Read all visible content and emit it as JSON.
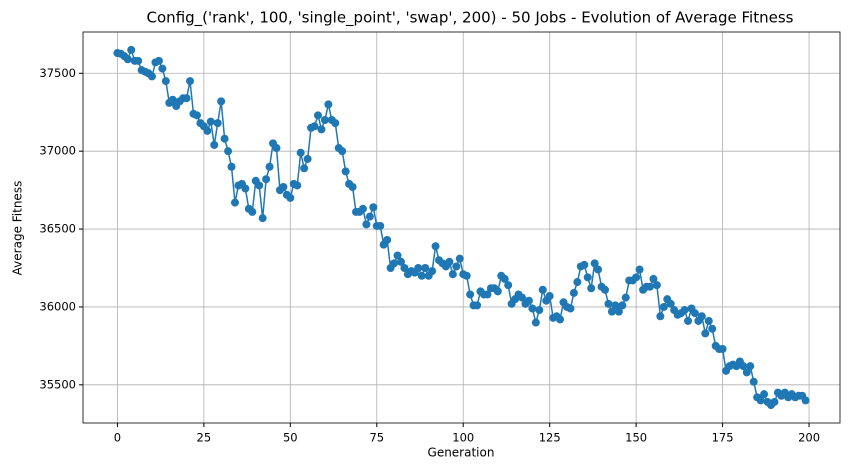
{
  "chart_data": {
    "type": "line",
    "title": "Config_('rank', 100, 'single_point', 'swap', 200) - 50 Jobs - Evolution of Average Fitness",
    "x_label": "Generation",
    "y_label": "Average Fitness",
    "x": [
      0,
      1,
      2,
      3,
      4,
      5,
      6,
      7,
      8,
      9,
      10,
      11,
      12,
      13,
      14,
      15,
      16,
      17,
      18,
      19,
      20,
      21,
      22,
      23,
      24,
      25,
      26,
      27,
      28,
      29,
      30,
      31,
      32,
      33,
      34,
      35,
      36,
      37,
      38,
      39,
      40,
      41,
      42,
      43,
      44,
      45,
      46,
      47,
      48,
      49,
      50,
      51,
      52,
      53,
      54,
      55,
      56,
      57,
      58,
      59,
      60,
      61,
      62,
      63,
      64,
      65,
      66,
      67,
      68,
      69,
      70,
      71,
      72,
      73,
      74,
      75,
      76,
      77,
      78,
      79,
      80,
      81,
      82,
      83,
      84,
      85,
      86,
      87,
      88,
      89,
      90,
      91,
      92,
      93,
      94,
      95,
      96,
      97,
      98,
      99,
      100,
      101,
      102,
      103,
      104,
      105,
      106,
      107,
      108,
      109,
      110,
      111,
      112,
      113,
      114,
      115,
      116,
      117,
      118,
      119,
      120,
      121,
      122,
      123,
      124,
      125,
      126,
      127,
      128,
      129,
      130,
      131,
      132,
      133,
      134,
      135,
      136,
      137,
      138,
      139,
      140,
      141,
      142,
      143,
      144,
      145,
      146,
      147,
      148,
      149,
      150,
      151,
      152,
      153,
      154,
      155,
      156,
      157,
      158,
      159,
      160,
      161,
      162,
      163,
      164,
      165,
      166,
      167,
      168,
      169,
      170,
      171,
      172,
      173,
      174,
      175,
      176,
      177,
      178,
      179,
      180,
      181,
      182,
      183,
      184,
      185,
      186,
      187,
      188,
      189,
      190,
      191,
      192,
      193,
      194,
      195,
      196,
      197,
      198,
      199
    ],
    "series": [
      {
        "name": "Average Fitness",
        "color": "#1f77b4",
        "values": [
          37630,
          37625,
          37610,
          37590,
          37650,
          37580,
          37580,
          37520,
          37510,
          37500,
          37480,
          37570,
          37580,
          37530,
          37450,
          37310,
          37330,
          37290,
          37320,
          37340,
          37340,
          37450,
          37240,
          37230,
          37180,
          37160,
          37130,
          37190,
          37040,
          37180,
          37320,
          37080,
          37000,
          36900,
          36670,
          36780,
          36790,
          36760,
          36630,
          36610,
          36810,
          36780,
          36570,
          36820,
          36900,
          37050,
          37020,
          36750,
          36770,
          36720,
          36700,
          36790,
          36780,
          36990,
          36890,
          36950,
          37150,
          37160,
          37230,
          37140,
          37200,
          37300,
          37200,
          37180,
          37020,
          37000,
          36870,
          36790,
          36770,
          36610,
          36610,
          36630,
          36530,
          36580,
          36640,
          36520,
          36520,
          36400,
          36430,
          36250,
          36280,
          36330,
          36290,
          36250,
          36210,
          36230,
          36220,
          36250,
          36200,
          36250,
          36200,
          36230,
          36390,
          36300,
          36280,
          36260,
          36290,
          36210,
          36260,
          36310,
          36210,
          36200,
          36080,
          36010,
          36010,
          36100,
          36080,
          36080,
          36120,
          36120,
          36100,
          36200,
          36180,
          36140,
          36020,
          36050,
          36080,
          36060,
          36020,
          36040,
          35990,
          35900,
          35980,
          36110,
          36040,
          36070,
          35930,
          35940,
          35920,
          36030,
          36000,
          35990,
          36090,
          36160,
          36260,
          36270,
          36190,
          36120,
          36280,
          36240,
          36130,
          36110,
          36020,
          35970,
          36010,
          35970,
          36010,
          36060,
          36170,
          36170,
          36190,
          36240,
          36110,
          36130,
          36130,
          36180,
          36140,
          35940,
          36000,
          36050,
          36020,
          35980,
          35950,
          35960,
          35980,
          35910,
          35990,
          35960,
          35910,
          35940,
          35830,
          35910,
          35860,
          35750,
          35730,
          35730,
          35590,
          35620,
          35630,
          35620,
          35650,
          35620,
          35580,
          35620,
          35520,
          35420,
          35400,
          35440,
          35390,
          35370,
          35390,
          35450,
          35430,
          35450,
          35420,
          35440,
          35420,
          35430,
          35430,
          35400
        ]
      }
    ],
    "xlim": [
      -9.95,
      208.95
    ],
    "ylim": [
      35255,
      37765
    ],
    "xticks": [
      0,
      25,
      50,
      75,
      100,
      125,
      150,
      175,
      200
    ],
    "yticks": [
      35500,
      36000,
      36500,
      37000,
      37500
    ],
    "grid": true
  }
}
